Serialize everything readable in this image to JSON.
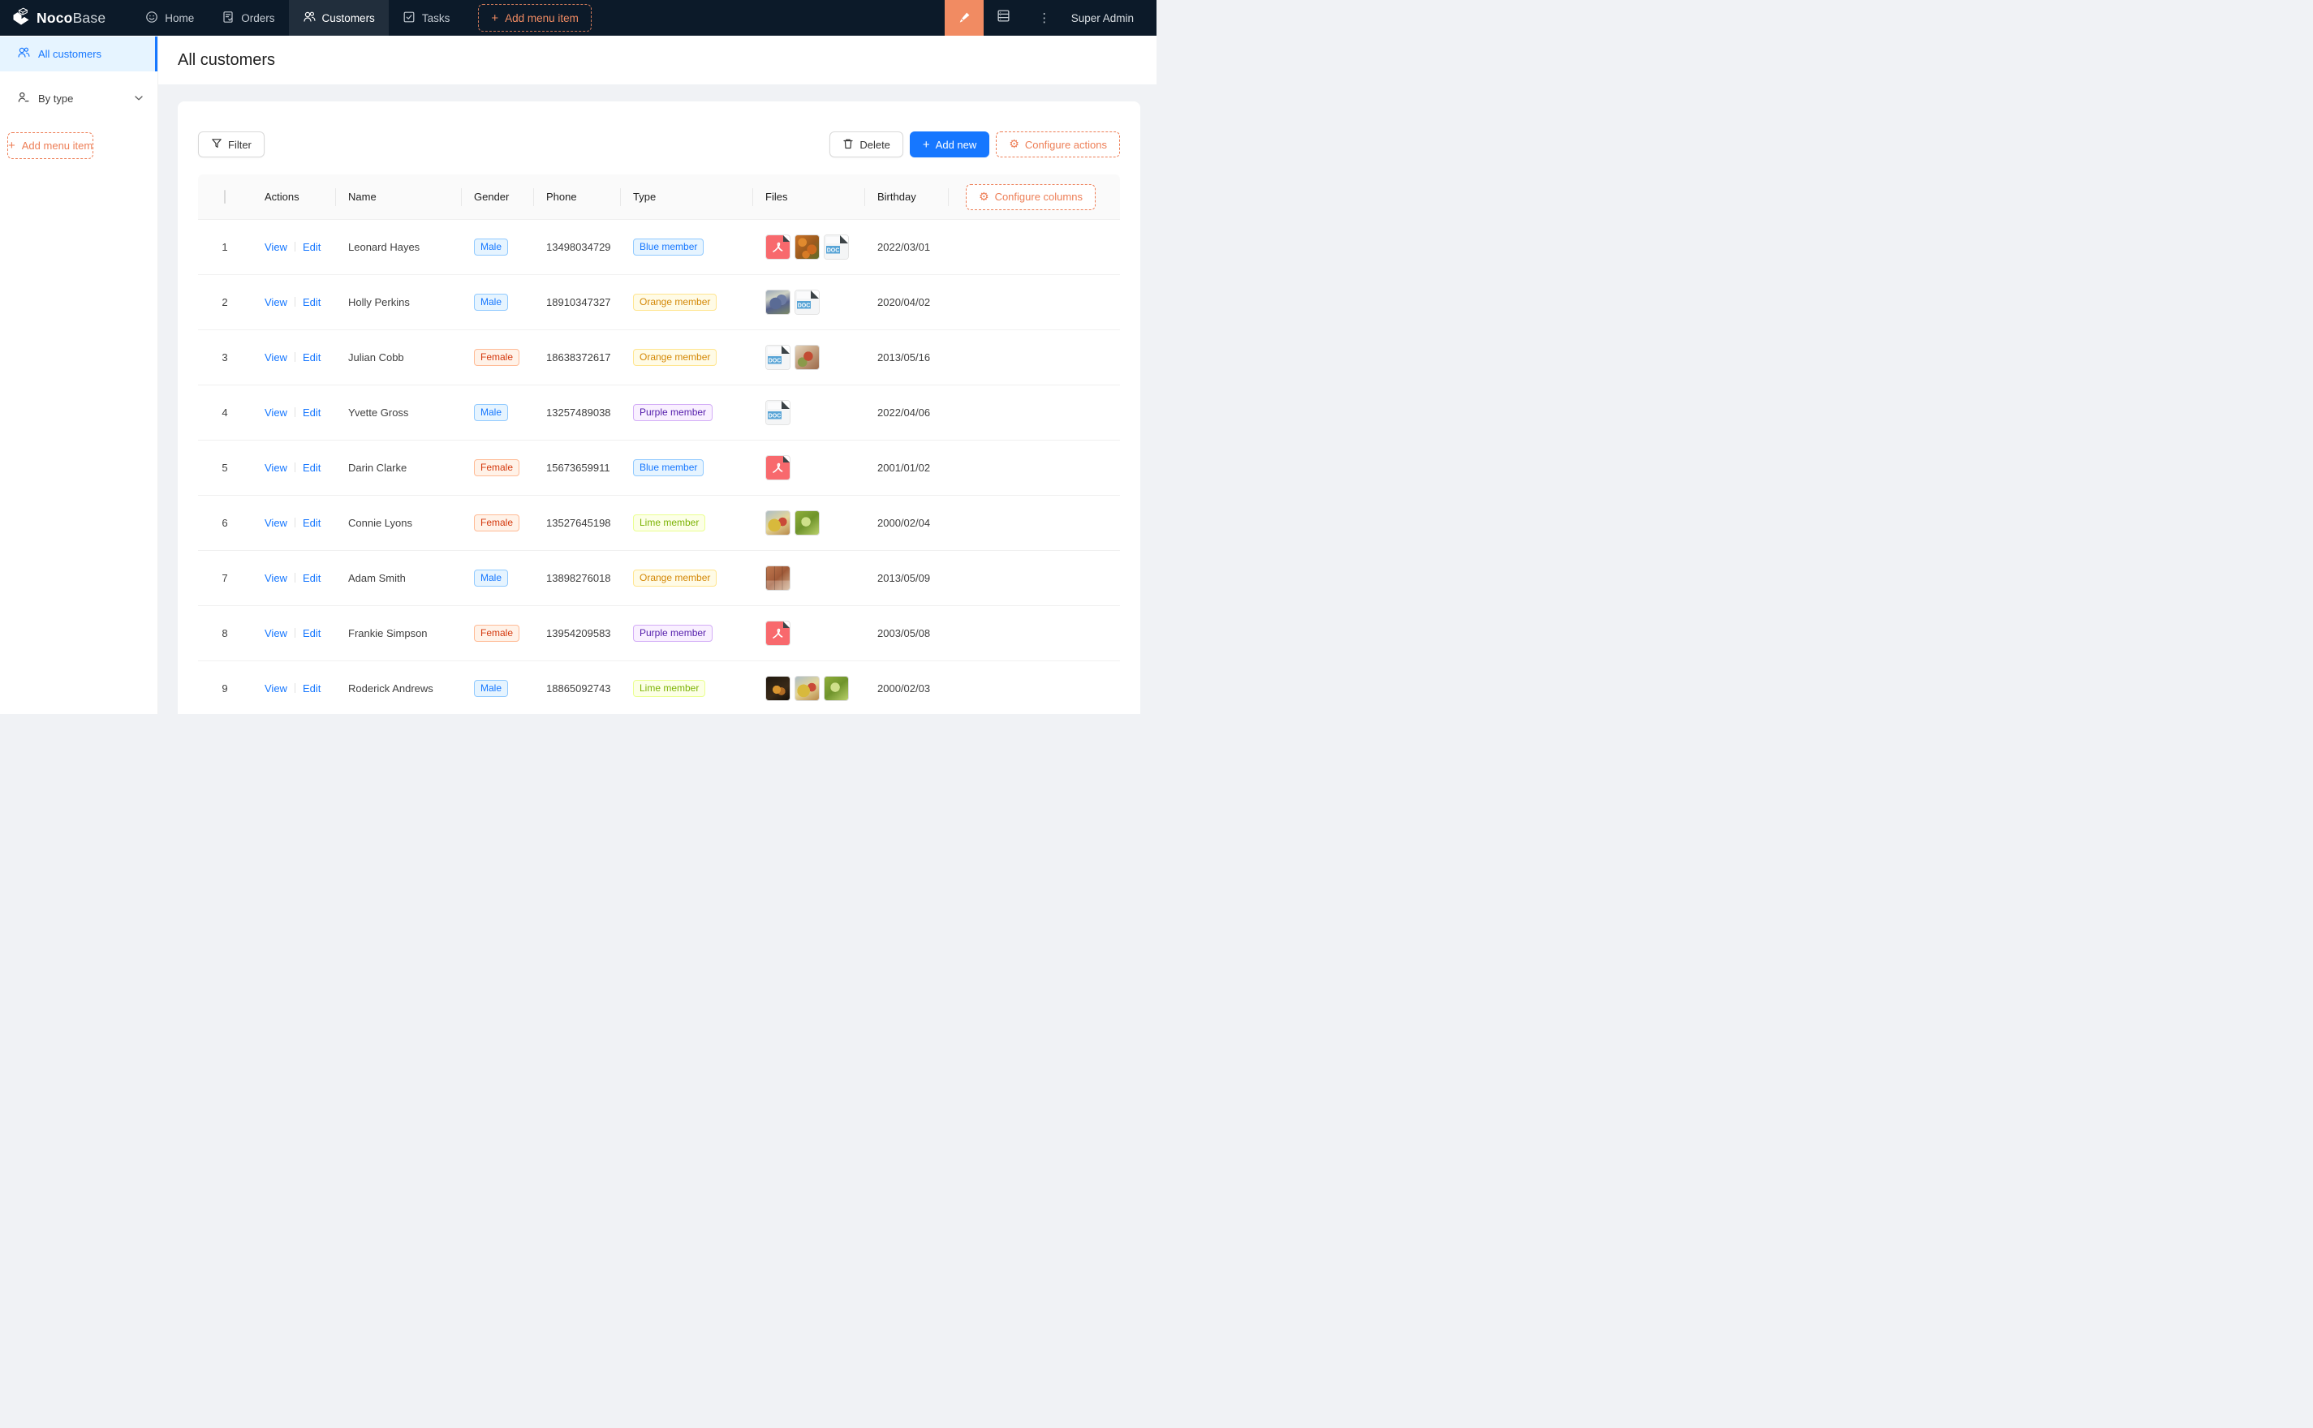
{
  "colors": {
    "navbar_bg": "#0c1a29",
    "accent_blue": "#1677ff",
    "designer_orange": "#f18b62",
    "dashed_orange": "#ed7e56",
    "selected_menu_bg": "#e6f4ff",
    "content_bg": "#f0f2f5",
    "pdf_red": "#f8696d",
    "doc_blue": "#58a4d6"
  },
  "navbar": {
    "logo_primary": "Noco",
    "logo_secondary": "Base",
    "items": [
      {
        "label": "Home",
        "selected": false
      },
      {
        "label": "Orders",
        "selected": false
      },
      {
        "label": "Customers",
        "selected": true
      },
      {
        "label": "Tasks",
        "selected": false
      }
    ],
    "add_menu_label": "Add menu item",
    "user_name": "Super Admin"
  },
  "sidebar": {
    "items": [
      {
        "label": "All customers",
        "selected": true
      },
      {
        "label": "By type",
        "selected": false
      }
    ],
    "add_menu_label": "Add menu item"
  },
  "page": {
    "title": "All customers"
  },
  "toolbar": {
    "filter_label": "Filter",
    "delete_label": "Delete",
    "add_new_label": "Add new",
    "configure_actions_label": "Configure actions"
  },
  "table": {
    "headers": {
      "actions": "Actions",
      "name": "Name",
      "gender": "Gender",
      "phone": "Phone",
      "type": "Type",
      "files": "Files",
      "birthday": "Birthday"
    },
    "configure_columns_label": "Configure columns",
    "view_label": "View",
    "edit_label": "Edit",
    "rows": [
      {
        "index": "1",
        "name": "Leonard Hayes",
        "gender": {
          "label": "Male",
          "color": "blue"
        },
        "phone": "13498034729",
        "type": {
          "label": "Blue member",
          "color": "blue"
        },
        "files": [
          {
            "kind": "pdf"
          },
          {
            "kind": "photo",
            "look": "marigold"
          },
          {
            "kind": "doc"
          }
        ],
        "birthday": "2022/03/01"
      },
      {
        "index": "2",
        "name": "Holly Perkins",
        "gender": {
          "label": "Male",
          "color": "blue"
        },
        "phone": "18910347327",
        "type": {
          "label": "Orange member",
          "color": "gold"
        },
        "files": [
          {
            "kind": "photo",
            "look": "blue-grapes"
          },
          {
            "kind": "doc"
          }
        ],
        "birthday": "2020/04/02"
      },
      {
        "index": "3",
        "name": "Julian Cobb",
        "gender": {
          "label": "Female",
          "color": "volcano"
        },
        "phone": "18638372617",
        "type": {
          "label": "Orange member",
          "color": "gold"
        },
        "files": [
          {
            "kind": "doc"
          },
          {
            "kind": "photo",
            "look": "salad"
          }
        ],
        "birthday": "2013/05/16"
      },
      {
        "index": "4",
        "name": "Yvette Gross",
        "gender": {
          "label": "Male",
          "color": "blue"
        },
        "phone": "13257489038",
        "type": {
          "label": "Purple member",
          "color": "purple"
        },
        "files": [
          {
            "kind": "doc"
          }
        ],
        "birthday": "2022/04/06"
      },
      {
        "index": "5",
        "name": "Darin Clarke",
        "gender": {
          "label": "Female",
          "color": "volcano"
        },
        "phone": "15673659911",
        "type": {
          "label": "Blue member",
          "color": "blue"
        },
        "files": [
          {
            "kind": "pdf"
          }
        ],
        "birthday": "2001/01/02"
      },
      {
        "index": "6",
        "name": "Connie Lyons",
        "gender": {
          "label": "Female",
          "color": "volcano"
        },
        "phone": "13527645198",
        "type": {
          "label": "Lime member",
          "color": "lime"
        },
        "files": [
          {
            "kind": "photo",
            "look": "fruit"
          },
          {
            "kind": "photo",
            "look": "green-grapes"
          }
        ],
        "birthday": "2000/02/04"
      },
      {
        "index": "7",
        "name": "Adam Smith",
        "gender": {
          "label": "Male",
          "color": "blue"
        },
        "phone": "13898276018",
        "type": {
          "label": "Orange member",
          "color": "gold"
        },
        "files": [
          {
            "kind": "photo",
            "look": "collage"
          }
        ],
        "birthday": "2013/05/09"
      },
      {
        "index": "8",
        "name": "Frankie Simpson",
        "gender": {
          "label": "Female",
          "color": "volcano"
        },
        "phone": "13954209583",
        "type": {
          "label": "Purple member",
          "color": "purple"
        },
        "files": [
          {
            "kind": "pdf"
          }
        ],
        "birthday": "2003/05/08"
      },
      {
        "index": "9",
        "name": "Roderick Andrews",
        "gender": {
          "label": "Male",
          "color": "blue"
        },
        "phone": "18865092743",
        "type": {
          "label": "Lime member",
          "color": "lime"
        },
        "files": [
          {
            "kind": "photo",
            "look": "dark-fruit"
          },
          {
            "kind": "photo",
            "look": "fruit"
          },
          {
            "kind": "photo",
            "look": "green-grapes"
          }
        ],
        "birthday": "2000/02/03"
      }
    ]
  },
  "file_icons": {
    "doc_label": "DOC"
  }
}
